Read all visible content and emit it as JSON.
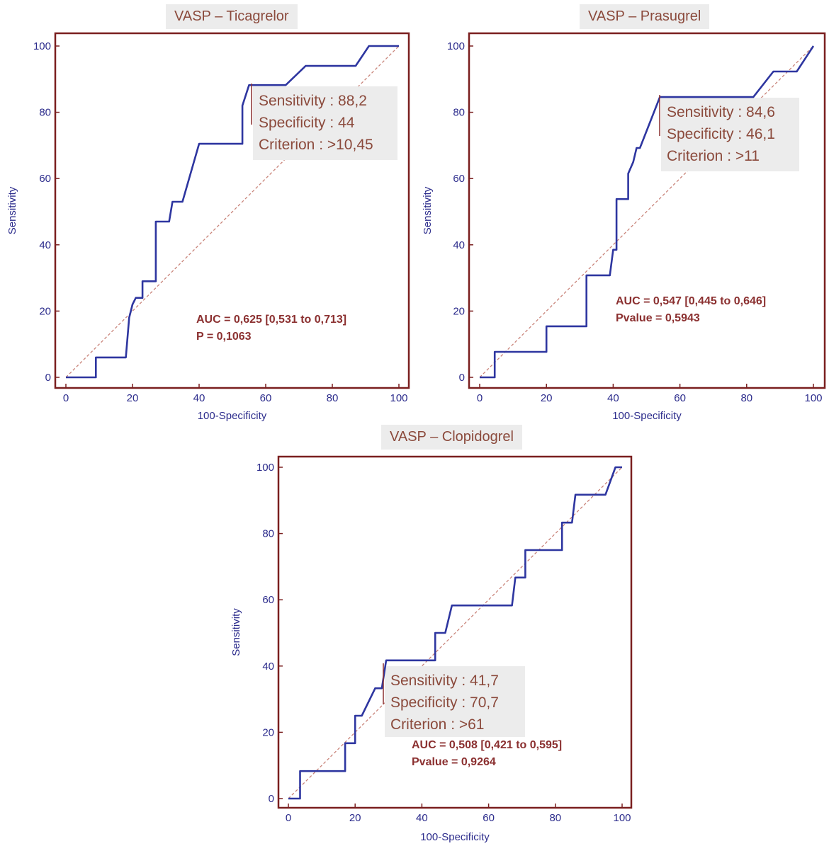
{
  "chart_data": [
    {
      "type": "line",
      "title": "VASP – Ticagrelor",
      "xlabel": "100-Specificity",
      "ylabel": "Sensitivity",
      "xlim": [
        0,
        100
      ],
      "ylim": [
        0,
        100
      ],
      "x_ticks": [
        "0",
        "20",
        "40",
        "60",
        "80",
        "100"
      ],
      "y_ticks": [
        "0",
        "20",
        "40",
        "60",
        "80",
        "100"
      ],
      "series": [
        {
          "name": "",
          "color": "#2e36a0",
          "points": [
            [
              0,
              0
            ],
            [
              9,
              0
            ],
            [
              9,
              6
            ],
            [
              18,
              6
            ],
            [
              19,
              18
            ],
            [
              20,
              22
            ],
            [
              21,
              24
            ],
            [
              23,
              24
            ],
            [
              23,
              29
            ],
            [
              27,
              29
            ],
            [
              27,
              47
            ],
            [
              31,
              47
            ],
            [
              32,
              53
            ],
            [
              35,
              53
            ],
            [
              40,
              70.5
            ],
            [
              42,
              70.5
            ],
            [
              53,
              70.5
            ],
            [
              53,
              82
            ],
            [
              55,
              88.2
            ],
            [
              66,
              88.2
            ],
            [
              72,
              94
            ],
            [
              87,
              94
            ],
            [
              91,
              100
            ],
            [
              100,
              100
            ]
          ]
        }
      ],
      "reference_line": {
        "from": [
          0,
          0
        ],
        "to": [
          100,
          100
        ],
        "color": "#c9847a"
      },
      "criterion_box": {
        "lines": [
          "Sensitivity : 88,2",
          "Specificity : 44",
          "Criterion : >10,45"
        ]
      },
      "stats": [
        "AUC = 0,625 [0,531 to 0,713]",
        "P = 0,1063"
      ]
    },
    {
      "type": "line",
      "title": "VASP – Prasugrel",
      "xlabel": "100-Specificity",
      "ylabel": "Sensitivity",
      "xlim": [
        0,
        100
      ],
      "ylim": [
        0,
        100
      ],
      "x_ticks": [
        "0",
        "20",
        "40",
        "60",
        "80",
        "100"
      ],
      "y_ticks": [
        "0",
        "20",
        "40",
        "60",
        "80",
        "100"
      ],
      "series": [
        {
          "name": "",
          "color": "#2e36a0",
          "points": [
            [
              0,
              0
            ],
            [
              4.5,
              0
            ],
            [
              4.5,
              7.7
            ],
            [
              20,
              7.7
            ],
            [
              20,
              15.4
            ],
            [
              32,
              15.4
            ],
            [
              32,
              30.8
            ],
            [
              39,
              30.8
            ],
            [
              40,
              38.5
            ],
            [
              41,
              38.5
            ],
            [
              41,
              53.8
            ],
            [
              44.5,
              53.8
            ],
            [
              44.5,
              61.5
            ],
            [
              46,
              65
            ],
            [
              47,
              69.2
            ],
            [
              48,
              69.2
            ],
            [
              54,
              84.6
            ],
            [
              82,
              84.6
            ],
            [
              88,
              92.3
            ],
            [
              95,
              92.3
            ],
            [
              100,
              100
            ]
          ]
        }
      ],
      "reference_line": {
        "from": [
          0,
          0
        ],
        "to": [
          100,
          100
        ],
        "color": "#c9847a"
      },
      "criterion_box": {
        "lines": [
          "Sensitivity : 84,6",
          "Specificity : 46,1",
          "Criterion : >11"
        ]
      },
      "stats": [
        "AUC = 0,547 [0,445 to 0,646]",
        "Pvalue = 0,5943"
      ]
    },
    {
      "type": "line",
      "title": "VASP – Clopidogrel",
      "xlabel": "100-Specificity",
      "ylabel": "Sensitivity",
      "xlim": [
        0,
        100
      ],
      "ylim": [
        0,
        100
      ],
      "x_ticks": [
        "0",
        "20",
        "40",
        "60",
        "80",
        "100"
      ],
      "y_ticks": [
        "0",
        "20",
        "40",
        "60",
        "80",
        "100"
      ],
      "series": [
        {
          "name": "",
          "color": "#2e36a0",
          "points": [
            [
              0,
              0
            ],
            [
              3.5,
              0
            ],
            [
              3.5,
              8.3
            ],
            [
              17,
              8.3
            ],
            [
              17,
              16.7
            ],
            [
              20,
              16.7
            ],
            [
              20,
              25
            ],
            [
              22,
              25
            ],
            [
              26,
              33.3
            ],
            [
              28,
              33.3
            ],
            [
              29.3,
              41.7
            ],
            [
              44,
              41.7
            ],
            [
              44,
              50
            ],
            [
              47,
              50
            ],
            [
              49,
              58.3
            ],
            [
              67,
              58.3
            ],
            [
              68,
              66.7
            ],
            [
              71,
              66.7
            ],
            [
              71,
              75
            ],
            [
              82,
              75
            ],
            [
              82,
              83.3
            ],
            [
              85,
              83.3
            ],
            [
              86,
              91.7
            ],
            [
              95,
              91.7
            ],
            [
              98,
              100
            ],
            [
              100,
              100
            ]
          ]
        }
      ],
      "reference_line": {
        "from": [
          0,
          0
        ],
        "to": [
          100,
          100
        ],
        "color": "#c9847a"
      },
      "criterion_box": {
        "lines": [
          "Sensitivity : 41,7",
          "Specificity : 70,7",
          "Criterion : >61"
        ]
      },
      "stats": [
        "AUC = 0,508 [0,421 to 0,595]",
        "Pvalue = 0,9264"
      ]
    }
  ]
}
